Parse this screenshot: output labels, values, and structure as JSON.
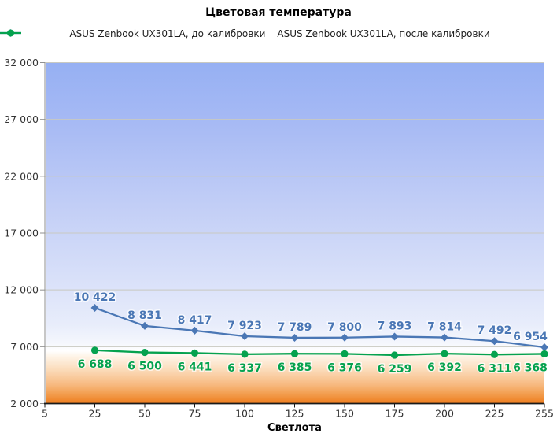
{
  "chart_data": {
    "type": "line",
    "title": "Цветовая температура",
    "xlabel": "Светлота",
    "ylabel": "",
    "categories": [
      "5",
      "25",
      "50",
      "75",
      "100",
      "125",
      "150",
      "175",
      "200",
      "225",
      "255"
    ],
    "series": [
      {
        "name": "ASUS Zenbook UX301LA, до калибровки",
        "color": "#4A77B5",
        "marker": "diamond",
        "label_position": "above",
        "values": [
          null,
          10422,
          8831,
          8417,
          7923,
          7789,
          7800,
          7893,
          7814,
          7492,
          6954
        ]
      },
      {
        "name": "ASUS Zenbook UX301LA, после калибровки",
        "color": "#05A24F",
        "marker": "circle",
        "label_position": "below",
        "values": [
          null,
          6688,
          6500,
          6441,
          6337,
          6385,
          6376,
          6259,
          6392,
          6311,
          6368
        ]
      }
    ],
    "ylim": [
      2000,
      32000
    ],
    "ytick_step": 5000,
    "ytick_labels": [
      "2 000",
      "7 000",
      "12 000",
      "17 000",
      "22 000",
      "27 000",
      "32 000"
    ],
    "grid": true,
    "legend_position": "top",
    "colors": {
      "gridline": "#C9C9C1",
      "x_axis": "#1a1a1a",
      "y_axis": "#8f8f8f",
      "tick_label": "#333333"
    },
    "background_gradient": [
      {
        "o": 0.0,
        "c": "#96B0F3"
      },
      {
        "o": 0.18,
        "c": "#A7BAF4"
      },
      {
        "o": 0.42,
        "c": "#C2CEF6"
      },
      {
        "o": 0.62,
        "c": "#D7DFF9"
      },
      {
        "o": 0.77,
        "c": "#E8EDFB"
      },
      {
        "o": 0.825,
        "c": "#F5F7FD"
      },
      {
        "o": 0.845,
        "c": "#FFFFFF"
      },
      {
        "o": 0.862,
        "c": "#FEF4E7"
      },
      {
        "o": 0.9,
        "c": "#FBDCBB"
      },
      {
        "o": 0.945,
        "c": "#F7B97F"
      },
      {
        "o": 0.975,
        "c": "#F29A49"
      },
      {
        "o": 1.0,
        "c": "#EE7C1D"
      }
    ]
  }
}
